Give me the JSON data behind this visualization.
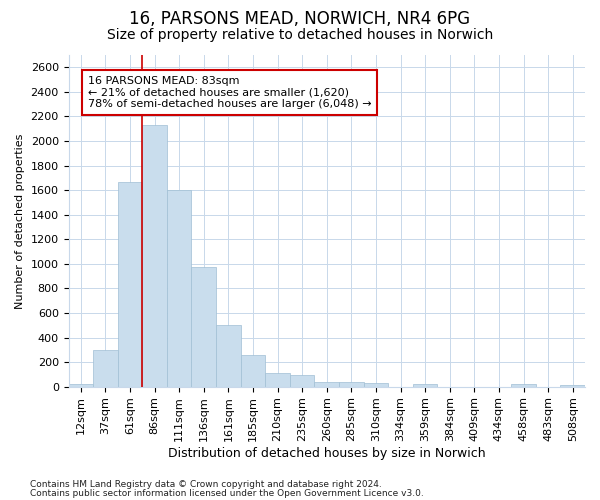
{
  "title1": "16, PARSONS MEAD, NORWICH, NR4 6PG",
  "title2": "Size of property relative to detached houses in Norwich",
  "xlabel": "Distribution of detached houses by size in Norwich",
  "ylabel": "Number of detached properties",
  "categories": [
    "12sqm",
    "37sqm",
    "61sqm",
    "86sqm",
    "111sqm",
    "136sqm",
    "161sqm",
    "185sqm",
    "210sqm",
    "235sqm",
    "260sqm",
    "285sqm",
    "310sqm",
    "334sqm",
    "359sqm",
    "384sqm",
    "409sqm",
    "434sqm",
    "458sqm",
    "483sqm",
    "508sqm"
  ],
  "values": [
    25,
    295,
    1670,
    2130,
    1600,
    975,
    505,
    255,
    115,
    95,
    40,
    35,
    30,
    0,
    25,
    0,
    0,
    0,
    25,
    0,
    15
  ],
  "bar_color": "#c9dded",
  "bar_edge_color": "#a0bfd4",
  "vline_color": "#cc0000",
  "annotation_line1": "16 PARSONS MEAD: 83sqm",
  "annotation_line2": "← 21% of detached houses are smaller (1,620)",
  "annotation_line3": "78% of semi-detached houses are larger (6,048) →",
  "annotation_box_color": "white",
  "annotation_box_edge": "#cc0000",
  "ylim": [
    0,
    2700
  ],
  "yticks": [
    0,
    200,
    400,
    600,
    800,
    1000,
    1200,
    1400,
    1600,
    1800,
    2000,
    2200,
    2400,
    2600
  ],
  "footer1": "Contains HM Land Registry data © Crown copyright and database right 2024.",
  "footer2": "Contains public sector information licensed under the Open Government Licence v3.0.",
  "background_color": "#ffffff",
  "plot_background": "#ffffff",
  "grid_color": "#c8d8ea",
  "title1_fontsize": 12,
  "title2_fontsize": 10,
  "xlabel_fontsize": 9,
  "ylabel_fontsize": 8,
  "tick_fontsize": 8,
  "footer_fontsize": 6.5
}
